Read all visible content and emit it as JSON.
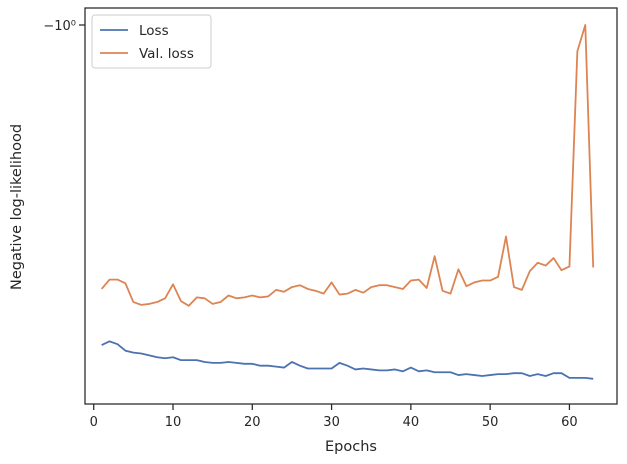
{
  "chart_data": {
    "type": "line",
    "xlabel": "Epochs",
    "ylabel": "Negative log-likelihood",
    "yscale": "symlog (negative values)",
    "xlim": [
      -1.1,
      66
    ],
    "x_ticks": [
      0,
      10,
      20,
      30,
      40,
      50,
      60
    ],
    "y_tick_labels": [
      "−10⁰"
    ],
    "grid": false,
    "legend_position": "top-left",
    "colors": {
      "Loss": "#4c72b0",
      "Val. loss": "#dd8452"
    },
    "x": [
      1,
      2,
      3,
      4,
      5,
      6,
      7,
      8,
      9,
      10,
      11,
      12,
      13,
      14,
      15,
      16,
      17,
      18,
      19,
      20,
      21,
      22,
      23,
      24,
      25,
      26,
      27,
      28,
      29,
      30,
      31,
      32,
      33,
      34,
      35,
      36,
      37,
      38,
      39,
      40,
      41,
      42,
      43,
      44,
      45,
      46,
      47,
      48,
      49,
      50,
      51,
      52,
      53,
      54,
      55,
      56,
      57,
      58,
      59,
      60,
      61,
      62,
      63
    ],
    "series": [
      {
        "name": "Loss",
        "values": [
          -4.42,
          -4.38,
          -4.41,
          -4.48,
          -4.5,
          -4.51,
          -4.53,
          -4.55,
          -4.56,
          -4.55,
          -4.58,
          -4.58,
          -4.58,
          -4.6,
          -4.61,
          -4.61,
          -4.6,
          -4.61,
          -4.62,
          -4.62,
          -4.64,
          -4.64,
          -4.65,
          -4.66,
          -4.6,
          -4.64,
          -4.67,
          -4.67,
          -4.67,
          -4.67,
          -4.61,
          -4.64,
          -4.68,
          -4.67,
          -4.68,
          -4.69,
          -4.69,
          -4.68,
          -4.7,
          -4.66,
          -4.7,
          -4.69,
          -4.71,
          -4.71,
          -4.71,
          -4.74,
          -4.73,
          -4.74,
          -4.75,
          -4.74,
          -4.73,
          -4.73,
          -4.72,
          -4.72,
          -4.75,
          -4.73,
          -4.75,
          -4.72,
          -4.72,
          -4.77,
          -4.77,
          -4.77,
          -4.78
        ]
      },
      {
        "name": "Val. loss",
        "values": [
          -3.82,
          -3.72,
          -3.72,
          -3.76,
          -3.96,
          -3.99,
          -3.98,
          -3.96,
          -3.92,
          -3.77,
          -3.95,
          -4.0,
          -3.91,
          -3.92,
          -3.98,
          -3.96,
          -3.89,
          -3.92,
          -3.91,
          -3.89,
          -3.91,
          -3.9,
          -3.83,
          -3.85,
          -3.8,
          -3.78,
          -3.82,
          -3.84,
          -3.87,
          -3.75,
          -3.88,
          -3.87,
          -3.83,
          -3.86,
          -3.8,
          -3.78,
          -3.78,
          -3.8,
          -3.82,
          -3.73,
          -3.72,
          -3.81,
          -3.47,
          -3.84,
          -3.87,
          -3.61,
          -3.79,
          -3.75,
          -3.73,
          -3.73,
          -3.69,
          -3.26,
          -3.8,
          -3.83,
          -3.63,
          -3.54,
          -3.57,
          -3.49,
          -3.62,
          -3.58,
          -1.28,
          -1.0,
          -3.59
        ]
      }
    ]
  }
}
